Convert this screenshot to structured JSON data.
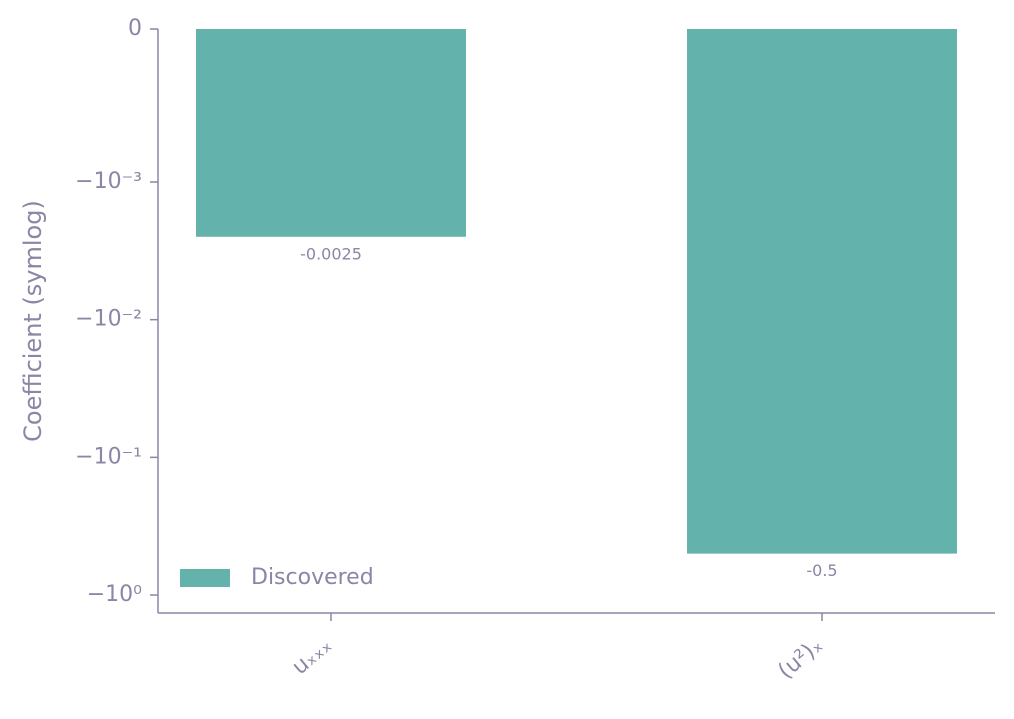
{
  "chart_data": {
    "type": "bar",
    "y_label": "Coefficient (symlog)",
    "categories": [
      "uₓₓₓ",
      "(u²)ₓ"
    ],
    "series": [
      {
        "name": "Discovered",
        "color": "#63b2ac",
        "values": [
          -0.0025,
          -0.5
        ]
      }
    ],
    "yscale": "symlog",
    "linthresh": 0.001,
    "ylim": [
      -1.35,
      0
    ],
    "yticks": [
      0,
      {
        "value": -0.001,
        "label": "−10⁻³"
      },
      {
        "value": -0.01,
        "label": "−10⁻²"
      },
      {
        "value": -0.1,
        "label": "−10⁻¹"
      },
      {
        "value": -1,
        "label": "−10⁰"
      }
    ],
    "legend": "lower left"
  }
}
